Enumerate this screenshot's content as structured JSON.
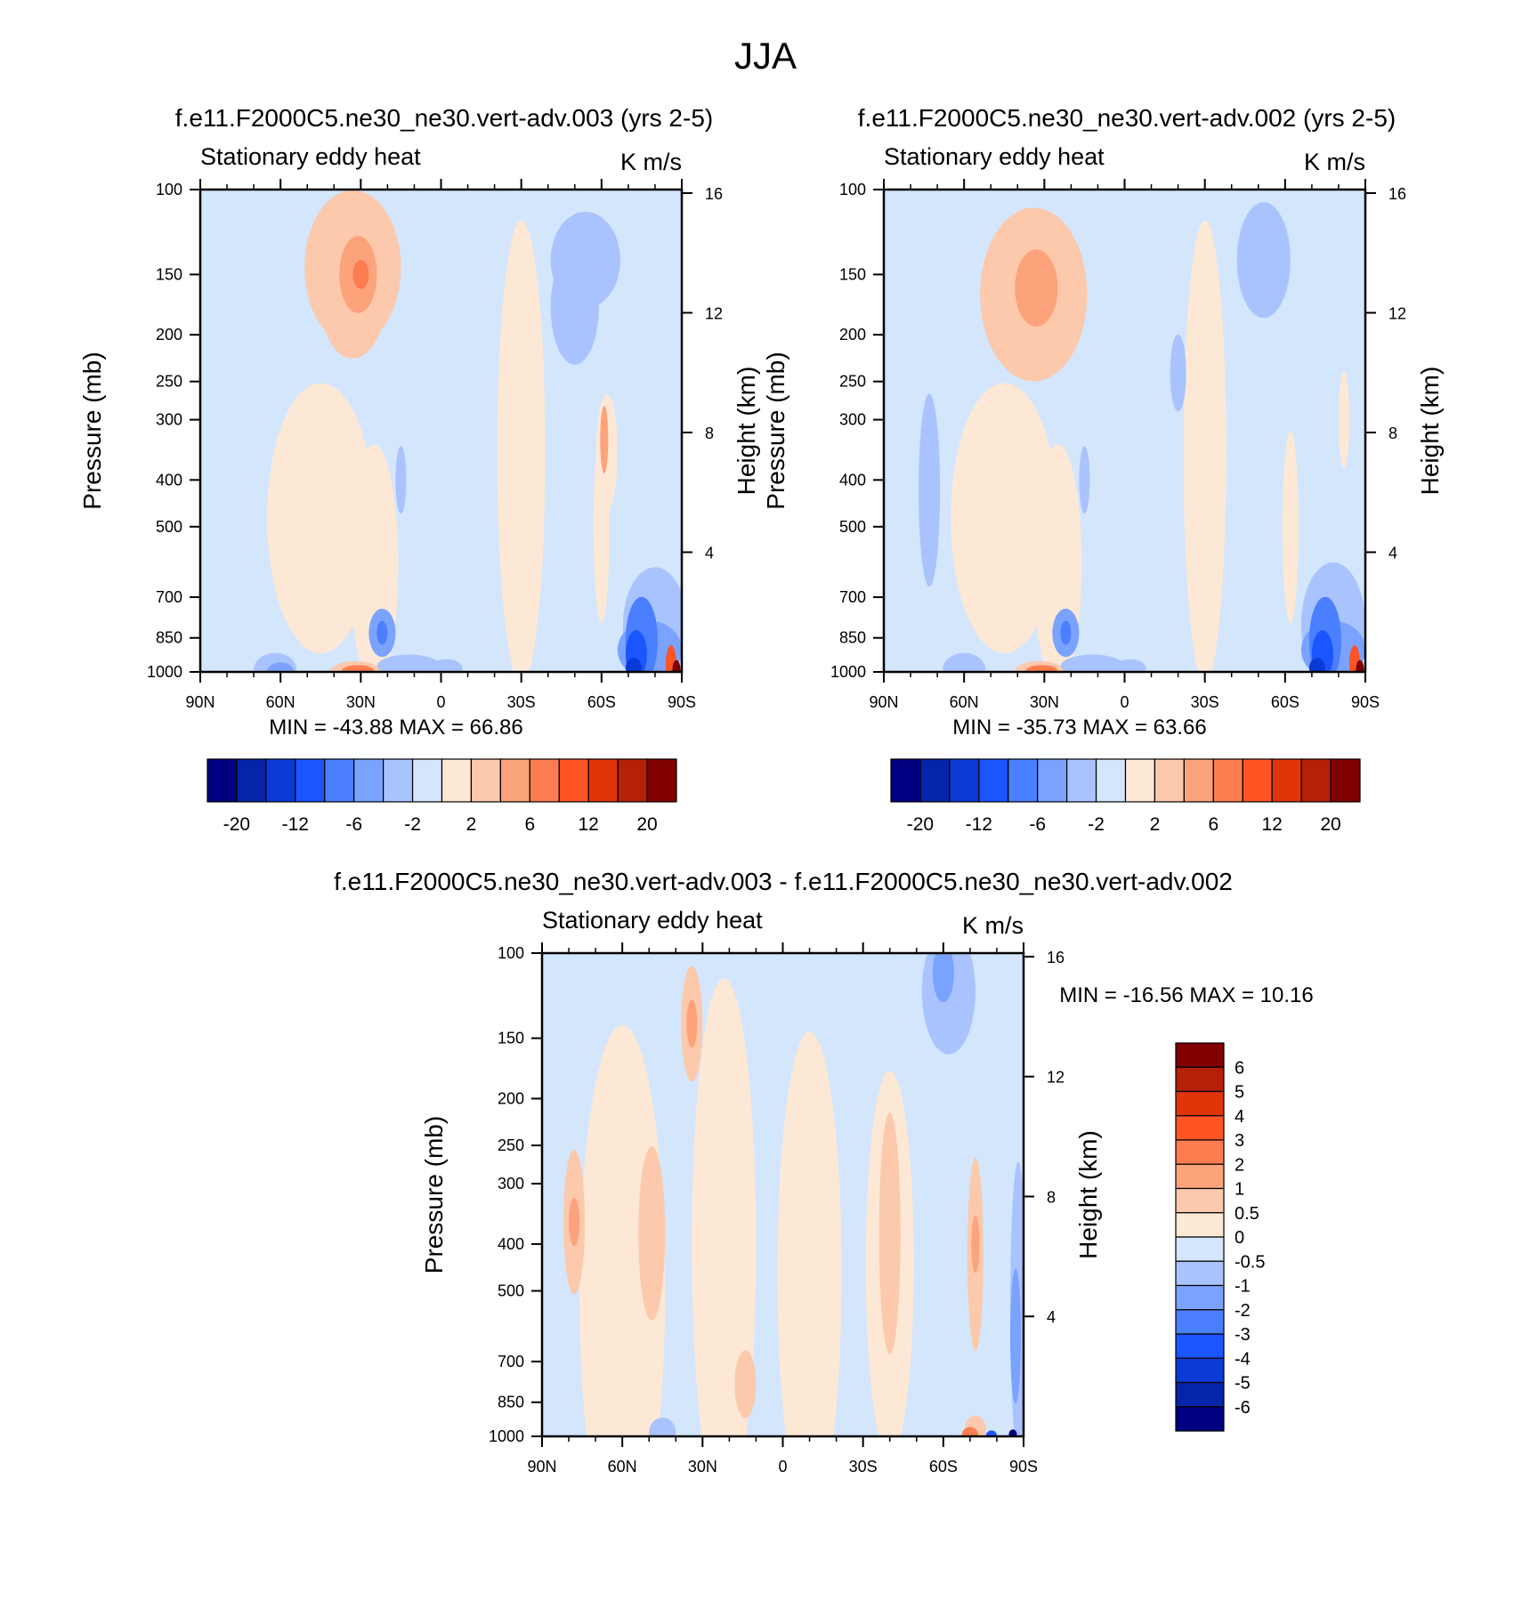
{
  "page_title": "JJA",
  "panel_variable": "Stationary eddy heat",
  "panel_units": "K m/s",
  "left_axis_label": "Pressure (mb)",
  "right_axis_label": "Height (km)",
  "pressure_ticks": [
    "100",
    "150",
    "200",
    "250",
    "300",
    "400",
    "500",
    "700",
    "850",
    "1000"
  ],
  "height_ticks": [
    "16",
    "12",
    "8",
    "4"
  ],
  "lat_ticks": [
    "90N",
    "60N",
    "30N",
    "0",
    "30S",
    "60S",
    "90S"
  ],
  "colors": {
    "blues": [
      "#000080",
      "#0624a8",
      "#0a3bd6",
      "#1a55ff",
      "#4a7fff",
      "#7aa2ff",
      "#a9c3ff",
      "#d3e6fc"
    ],
    "reds": [
      "#fde8d6",
      "#fcc9ac",
      "#fca37c",
      "#fd7d50",
      "#ff5524",
      "#e03508",
      "#b52006",
      "#800000"
    ]
  },
  "chart_data": [
    {
      "type": "heatmap",
      "id": "panel_003",
      "title": "f.e11.F2000C5.ne30_ne30.vert-adv.003 (yrs 2-5)",
      "label": "Stationary eddy heat",
      "units": "K m/s",
      "ylabel": "Pressure (mb)",
      "ylabel_right": "Height (km)",
      "x_ticks": [
        "90N",
        "60N",
        "30N",
        "0",
        "30S",
        "60S",
        "90S"
      ],
      "y_ticks": [
        100,
        150,
        200,
        250,
        300,
        400,
        500,
        700,
        850,
        1000
      ],
      "y_ticks_right": [
        16,
        12,
        8,
        4
      ],
      "min": -43.88,
      "max": 66.86,
      "min_label": "MIN = -43.88",
      "max_label": "MAX =  66.86",
      "colorbar_labels": [
        "-20",
        "-12",
        "-6",
        "-2",
        "2",
        "6",
        "12",
        "20"
      ]
    },
    {
      "type": "heatmap",
      "id": "panel_002",
      "title": "f.e11.F2000C5.ne30_ne30.vert-adv.002 (yrs 2-5)",
      "label": "Stationary eddy heat",
      "units": "K m/s",
      "ylabel": "Pressure (mb)",
      "ylabel_right": "Height (km)",
      "x_ticks": [
        "90N",
        "60N",
        "30N",
        "0",
        "30S",
        "60S",
        "90S"
      ],
      "y_ticks": [
        100,
        150,
        200,
        250,
        300,
        400,
        500,
        700,
        850,
        1000
      ],
      "y_ticks_right": [
        16,
        12,
        8,
        4
      ],
      "min": -35.73,
      "max": 63.66,
      "min_label": "MIN = -35.73",
      "max_label": "MAX =  63.66",
      "colorbar_labels": [
        "-20",
        "-12",
        "-6",
        "-2",
        "2",
        "6",
        "12",
        "20"
      ]
    },
    {
      "type": "heatmap",
      "id": "panel_diff",
      "title": "f.e11.F2000C5.ne30_ne30.vert-adv.003 - f.e11.F2000C5.ne30_ne30.vert-adv.002",
      "label": "Stationary eddy heat",
      "units": "K m/s",
      "ylabel": "Pressure (mb)",
      "ylabel_right": "Height (km)",
      "x_ticks": [
        "90N",
        "60N",
        "30N",
        "0",
        "30S",
        "60S",
        "90S"
      ],
      "y_ticks": [
        100,
        150,
        200,
        250,
        300,
        400,
        500,
        700,
        850,
        1000
      ],
      "y_ticks_right": [
        16,
        12,
        8,
        4
      ],
      "min": -16.56,
      "max": 10.16,
      "min_label": "MIN = -16.56",
      "max_label": "MAX =  10.16",
      "colorbar_labels": [
        "6",
        "5",
        "4",
        "3",
        "2",
        "1",
        "0.5",
        "0",
        "-0.5",
        "-1",
        "-2",
        "-3",
        "-4",
        "-5",
        "-6"
      ]
    }
  ]
}
